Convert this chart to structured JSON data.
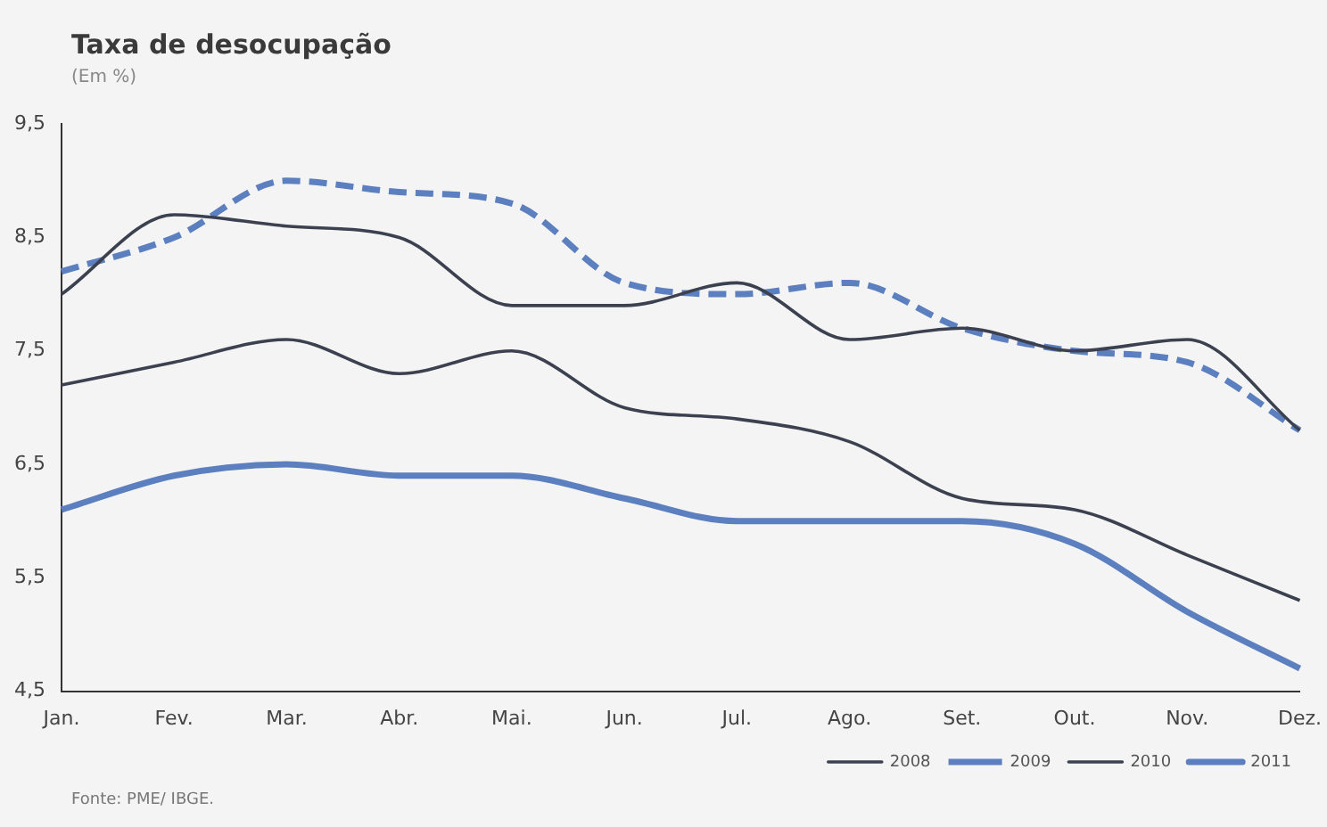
{
  "chart_data": {
    "type": "line",
    "title": "Taxa de desocupação",
    "subtitle": "(Em %)",
    "categories": [
      "Jan.",
      "Fev.",
      "Mar.",
      "Abr.",
      "Mai.",
      "Jun.",
      "Jul.",
      "Ago.",
      "Set.",
      "Out.",
      "Nov.",
      "Dez."
    ],
    "series": [
      {
        "name": "2008",
        "color": "#3c4150",
        "line_style": "solid",
        "values": [
          8.0,
          8.7,
          8.6,
          8.5,
          7.9,
          7.9,
          8.1,
          7.6,
          7.7,
          7.5,
          7.6,
          6.8
        ]
      },
      {
        "name": "2009",
        "color": "#5b7fbf",
        "line_style": "dashed",
        "values": [
          8.2,
          8.5,
          9.0,
          8.9,
          8.8,
          8.1,
          8.0,
          8.1,
          7.7,
          7.5,
          7.4,
          6.8
        ]
      },
      {
        "name": "2010",
        "color": "#3c4150",
        "line_style": "solid",
        "values": [
          7.2,
          7.4,
          7.6,
          7.3,
          7.5,
          7.0,
          6.9,
          6.7,
          6.2,
          6.1,
          5.7,
          5.3
        ]
      },
      {
        "name": "2011",
        "color": "#5b7fbf",
        "line_style": "solid",
        "values": [
          6.1,
          6.4,
          6.5,
          6.4,
          6.4,
          6.2,
          6.0,
          6.0,
          6.0,
          5.8,
          5.2,
          4.7
        ]
      }
    ],
    "ylim": [
      4.5,
      9.5
    ],
    "yticks": [
      {
        "value": 4.5,
        "label": "4,5"
      },
      {
        "value": 5.5,
        "label": "5,5"
      },
      {
        "value": 6.5,
        "label": "6,5"
      },
      {
        "value": 7.5,
        "label": "7,5"
      },
      {
        "value": 8.5,
        "label": "8,5"
      },
      {
        "value": 9.5,
        "label": "9,5"
      }
    ],
    "grid": false,
    "legend": "bottom right",
    "marker": "none",
    "annotations": [
      "Fonte: PME/ IBGE."
    ]
  }
}
